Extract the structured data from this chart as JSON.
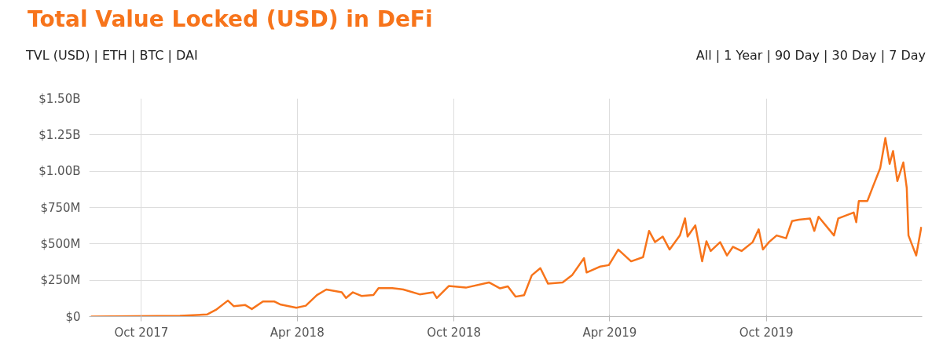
{
  "chart_data": {
    "type": "line",
    "title": "Total Value Locked (USD) in DeFi",
    "annotations": [
      "TVL (USD) | ETH | BTC | DAI",
      "All | 1 Year | 90 Day | 30 Day | 7 Day"
    ],
    "x": [
      "2017-08-03",
      "2017-11-15",
      "2017-12-17",
      "2017-12-27",
      "2018-01-10",
      "2018-01-17",
      "2018-01-30",
      "2018-02-07",
      "2018-02-20",
      "2018-03-05",
      "2018-03-12",
      "2018-03-31",
      "2018-04-11",
      "2018-04-24",
      "2018-05-05",
      "2018-05-23",
      "2018-05-28",
      "2018-06-05",
      "2018-06-15",
      "2018-06-29",
      "2018-07-05",
      "2018-07-21",
      "2018-08-03",
      "2018-08-22",
      "2018-09-07",
      "2018-09-11",
      "2018-09-25",
      "2018-10-15",
      "2018-11-11",
      "2018-11-24",
      "2018-12-03",
      "2018-12-12",
      "2018-12-22",
      "2018-12-31",
      "2019-01-10",
      "2019-01-19",
      "2019-02-05",
      "2019-02-16",
      "2019-03-02",
      "2019-03-05",
      "2019-03-21",
      "2019-03-31",
      "2019-04-11",
      "2019-04-26",
      "2019-05-10",
      "2019-05-17",
      "2019-05-24",
      "2019-06-02",
      "2019-06-10",
      "2019-06-22",
      "2019-06-28",
      "2019-07-01",
      "2019-07-10",
      "2019-07-18",
      "2019-07-23",
      "2019-07-28",
      "2019-08-08",
      "2019-08-16",
      "2019-08-23",
      "2019-09-02",
      "2019-09-15",
      "2019-09-22",
      "2019-09-27",
      "2019-10-04",
      "2019-10-13",
      "2019-10-24",
      "2019-10-31",
      "2019-11-08",
      "2019-11-21",
      "2019-11-26",
      "2019-12-01",
      "2019-12-19",
      "2019-12-24",
      "2020-01-11",
      "2020-01-14",
      "2020-01-17",
      "2020-01-27",
      "2020-02-03",
      "2020-02-11",
      "2020-02-17",
      "2020-02-22",
      "2020-02-26",
      "2020-03-02",
      "2020-03-09",
      "2020-03-13",
      "2020-03-15",
      "2020-03-24",
      "2020-03-30"
    ],
    "series": [
      {
        "color": "#f7741b",
        "values": [
          0,
          5000000,
          15000000,
          46000000,
          110000000,
          71000000,
          80000000,
          52000000,
          104000000,
          104000000,
          84000000,
          61000000,
          75000000,
          148000000,
          186000000,
          167000000,
          128000000,
          167000000,
          142000000,
          148000000,
          196000000,
          196000000,
          186000000,
          153000000,
          167000000,
          128000000,
          210000000,
          199000000,
          235000000,
          194000000,
          208000000,
          137000000,
          147000000,
          284000000,
          333000000,
          226000000,
          235000000,
          284000000,
          402000000,
          303000000,
          344000000,
          354000000,
          461000000,
          380000000,
          409000000,
          589000000,
          512000000,
          550000000,
          461000000,
          558000000,
          675000000,
          550000000,
          627000000,
          380000000,
          518000000,
          451000000,
          512000000,
          420000000,
          480000000,
          451000000,
          512000000,
          600000000,
          461000000,
          512000000,
          558000000,
          539000000,
          657000000,
          666000000,
          675000000,
          589000000,
          687000000,
          558000000,
          675000000,
          716000000,
          649000000,
          795000000,
          795000000,
          902000000,
          1021000000,
          1227000000,
          1050000000,
          1139000000,
          932000000,
          1060000000,
          884000000,
          558000000,
          420000000,
          616000000
        ]
      }
    ],
    "xlim": [
      "2017-08-01",
      "2020-03-31"
    ],
    "xticks": [
      {
        "value": "2017-10-01",
        "label": "Oct 2017"
      },
      {
        "value": "2018-04-01",
        "label": "Apr 2018"
      },
      {
        "value": "2018-10-01",
        "label": "Oct 2018"
      },
      {
        "value": "2019-04-01",
        "label": "Apr 2019"
      },
      {
        "value": "2019-10-01",
        "label": "Oct 2019"
      }
    ],
    "ylim": [
      0,
      1500000000
    ],
    "yticks": [
      {
        "value": 0,
        "label": "$0"
      },
      {
        "value": 250000000,
        "label": "$250M"
      },
      {
        "value": 500000000,
        "label": "$500M"
      },
      {
        "value": 750000000,
        "label": "$750M"
      },
      {
        "value": 1000000000,
        "label": "$1.00B"
      },
      {
        "value": 1250000000,
        "label": "$1.25B"
      },
      {
        "value": 1500000000,
        "label": "$1.50B"
      }
    ],
    "grid": true,
    "marker": "none",
    "line_style": "solid"
  }
}
